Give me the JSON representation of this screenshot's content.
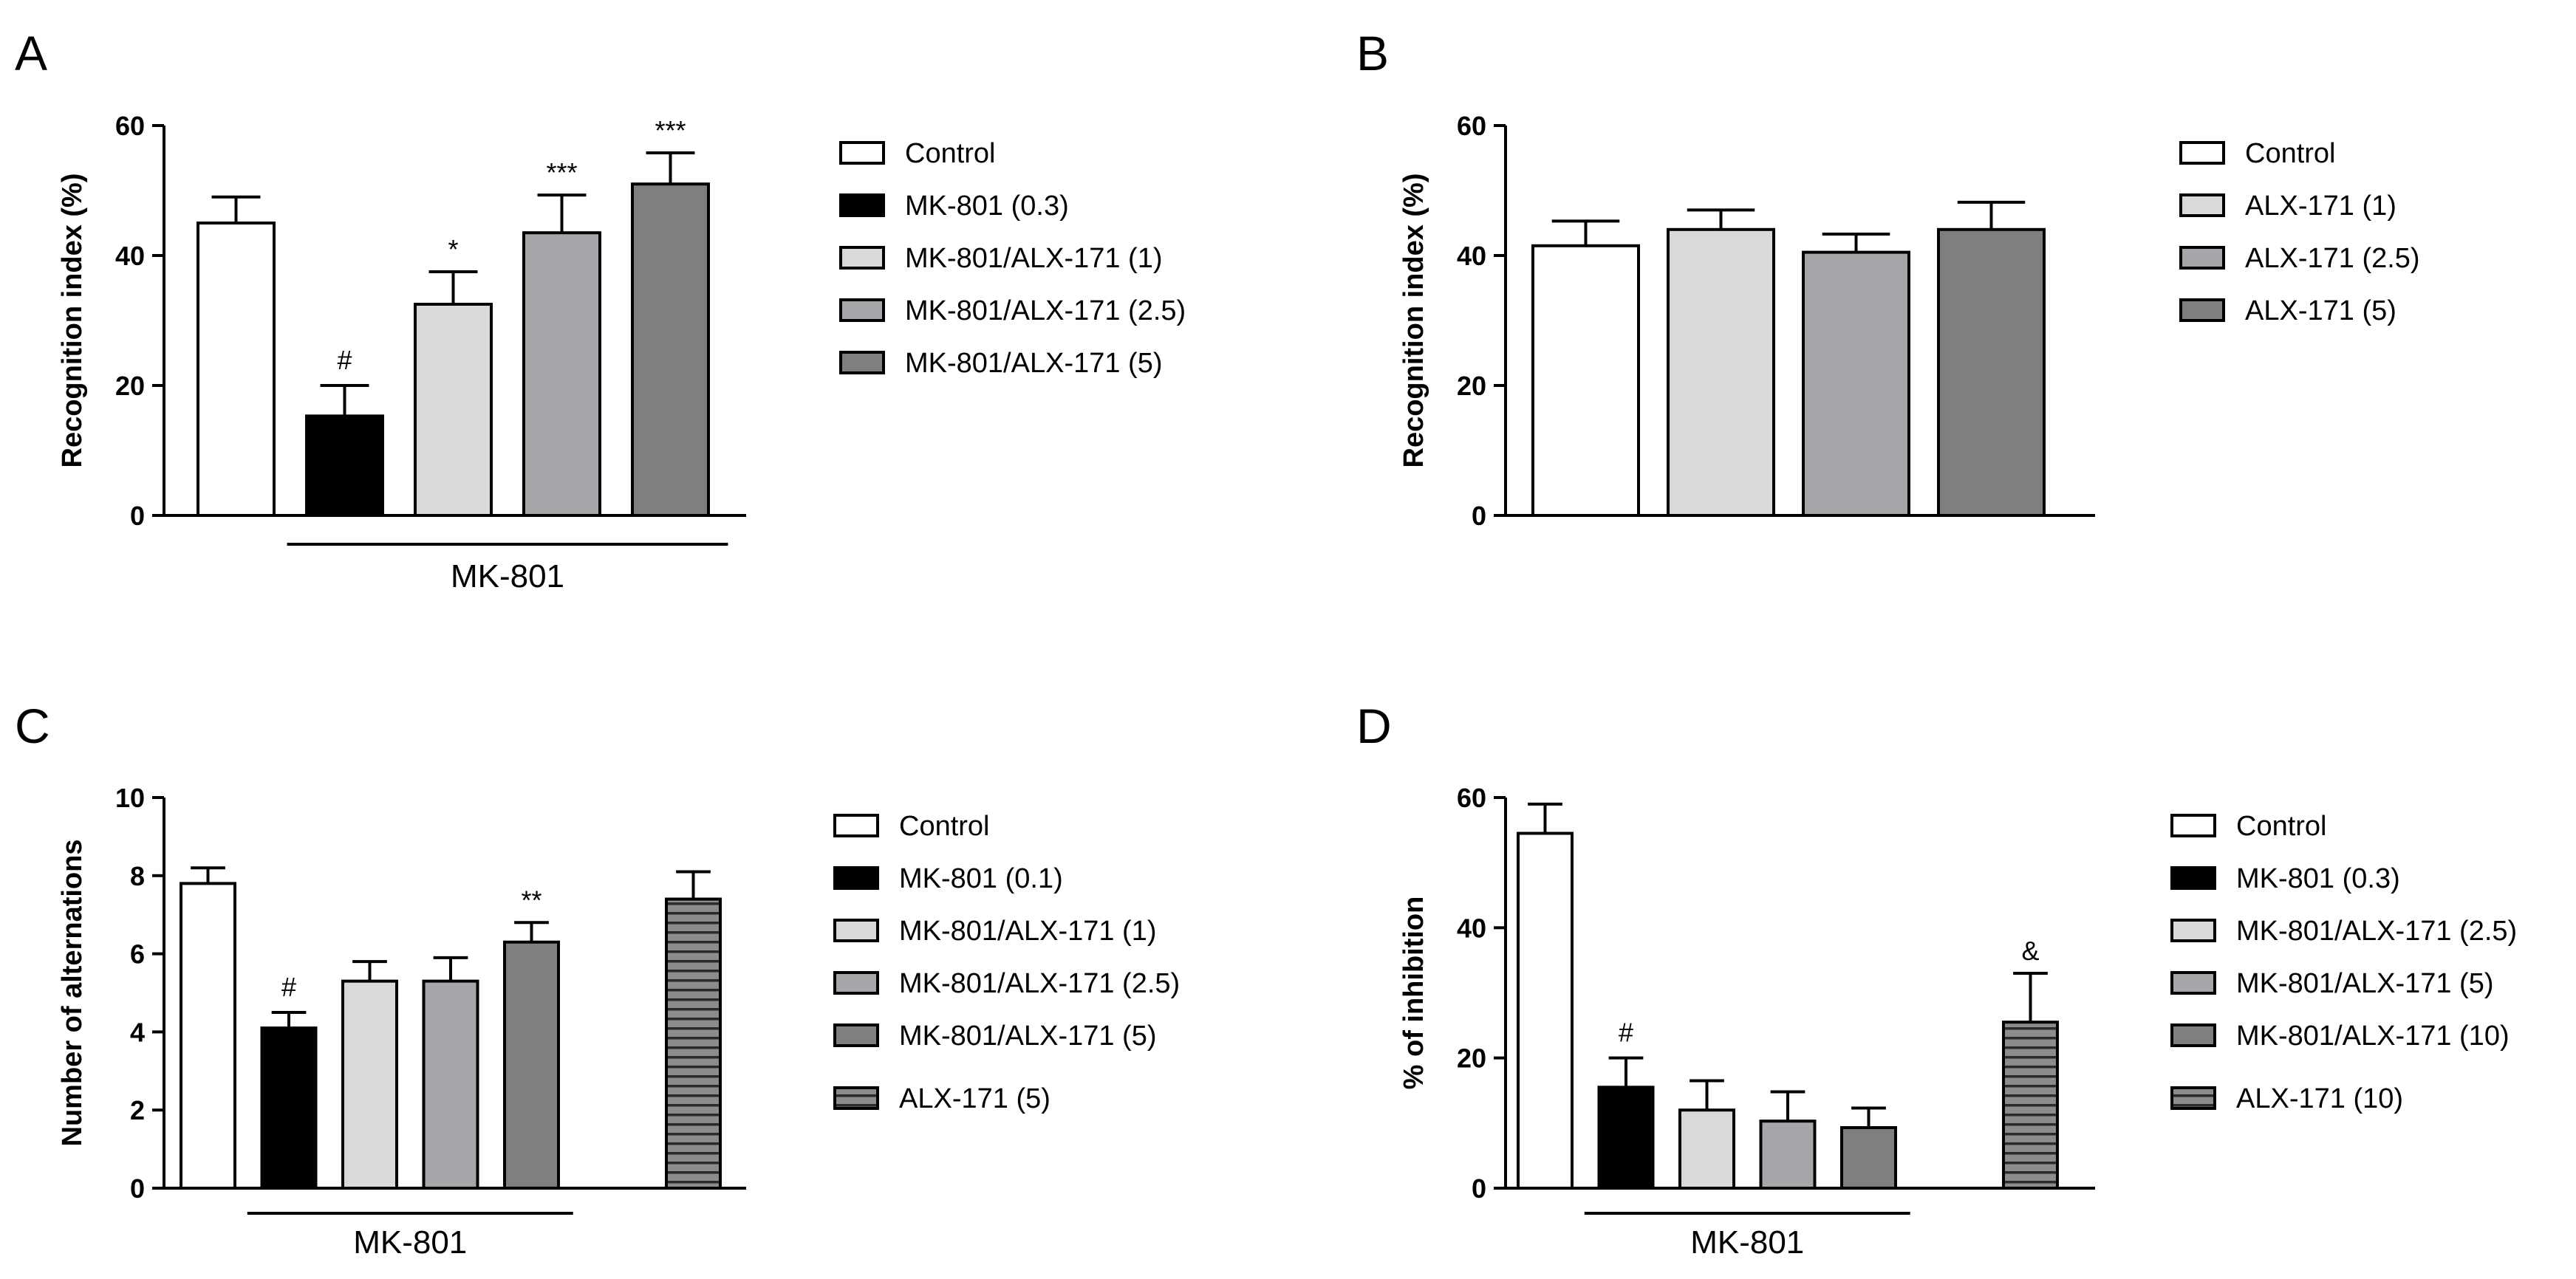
{
  "chart_data": [
    {
      "panel": "A",
      "type": "bar",
      "ylabel": "Recognition index (%)",
      "ylim": [
        0,
        60
      ],
      "yticks": [
        "0",
        "20",
        "40",
        "60"
      ],
      "group_label": "MK-801",
      "group_start": 1,
      "group_end": 4,
      "fills": [
        "#ffffff",
        "#000000",
        "#d9d9d9",
        "#a5a5aa",
        "#7f7f7f"
      ],
      "bars": [
        {
          "name": "Control",
          "value": 45,
          "error": 4,
          "annotation": ""
        },
        {
          "name": "MK-801 (0.3)",
          "value": 15.3,
          "error": 4.7,
          "annotation": "#"
        },
        {
          "name": "MK-801/ALX-171 (1)",
          "value": 32.5,
          "error": 5,
          "annotation": "*"
        },
        {
          "name": "MK-801/ALX-171 (2.5)",
          "value": 43.5,
          "error": 5.8,
          "annotation": "***"
        },
        {
          "name": "MK-801/ALX-171 (5)",
          "value": 51,
          "error": 4.8,
          "annotation": "***"
        }
      ],
      "legend": [
        "Control",
        "MK-801 (0.3)",
        "MK-801/ALX-171 (1)",
        "MK-801/ALX-171 (2.5)",
        "MK-801/ALX-171 (5)"
      ]
    },
    {
      "panel": "B",
      "type": "bar",
      "ylabel": "Recognition index (%)",
      "ylim": [
        0,
        60
      ],
      "yticks": [
        "0",
        "20",
        "40",
        "60"
      ],
      "group_label": "",
      "fills": [
        "#ffffff",
        "#d9d9d9",
        "#a5a5aa",
        "#7f7f7f"
      ],
      "bars": [
        {
          "name": "Control",
          "value": 41.5,
          "error": 3.8,
          "annotation": ""
        },
        {
          "name": "ALX-171 (1)",
          "value": 44,
          "error": 3,
          "annotation": ""
        },
        {
          "name": "ALX-171 (2.5)",
          "value": 40.5,
          "error": 2.8,
          "annotation": ""
        },
        {
          "name": "ALX-171 (5)",
          "value": 44,
          "error": 4.2,
          "annotation": ""
        }
      ],
      "legend": [
        "Control",
        "ALX-171 (1)",
        "ALX-171 (2.5)",
        "ALX-171 (5)"
      ]
    },
    {
      "panel": "C",
      "type": "bar",
      "ylabel": "Number of alternations",
      "ylim": [
        0,
        10
      ],
      "yticks": [
        "0",
        "2",
        "4",
        "6",
        "8",
        "10"
      ],
      "group_label": "MK-801",
      "group_start": 1,
      "group_end": 4,
      "fills": [
        "#ffffff",
        "#000000",
        "#d9d9d9",
        "#a5a5aa",
        "#7f7f7f",
        "#8c8c8c"
      ],
      "hatched": [
        5
      ],
      "bars": [
        {
          "name": "Control",
          "value": 7.8,
          "error": 0.4,
          "annotation": ""
        },
        {
          "name": "MK-801 (0.1)",
          "value": 4.1,
          "error": 0.4,
          "annotation": "#"
        },
        {
          "name": "MK-801/ALX-171 (1)",
          "value": 5.3,
          "error": 0.5,
          "annotation": ""
        },
        {
          "name": "MK-801/ALX-171 (2.5)",
          "value": 5.3,
          "error": 0.6,
          "annotation": ""
        },
        {
          "name": "MK-801/ALX-171 (5)",
          "value": 6.3,
          "error": 0.5,
          "annotation": "**"
        },
        {
          "name": "ALX-171 (5)",
          "value": 7.4,
          "error": 0.7,
          "annotation": ""
        }
      ],
      "legend": [
        "Control",
        "MK-801 (0.1)",
        "MK-801/ALX-171 (1)",
        "MK-801/ALX-171 (2.5)",
        "MK-801/ALX-171 (5)",
        "ALX-171 (5)"
      ]
    },
    {
      "panel": "D",
      "type": "bar",
      "ylabel": "% of inhibition",
      "ylim": [
        0,
        60
      ],
      "yticks": [
        "0",
        "20",
        "40",
        "60"
      ],
      "group_label": "MK-801",
      "group_start": 1,
      "group_end": 4,
      "fills": [
        "#ffffff",
        "#000000",
        "#d9d9d9",
        "#a5a5aa",
        "#7f7f7f",
        "#8c8c8c"
      ],
      "hatched": [
        5
      ],
      "bars": [
        {
          "name": "Control",
          "value": 54.5,
          "error": 4.5,
          "annotation": ""
        },
        {
          "name": "MK-801 (0.3)",
          "value": 15.5,
          "error": 4.5,
          "annotation": "#"
        },
        {
          "name": "MK-801/ALX-171 (2.5)",
          "value": 12,
          "error": 4.5,
          "annotation": ""
        },
        {
          "name": "MK-801/ALX-171 (5)",
          "value": 10.3,
          "error": 4.5,
          "annotation": ""
        },
        {
          "name": "MK-801/ALX-171 (10)",
          "value": 9.3,
          "error": 3,
          "annotation": ""
        },
        {
          "name": "ALX-171 (10)",
          "value": 25.5,
          "error": 7.5,
          "annotation": "&"
        }
      ],
      "legend": [
        "Control",
        "MK-801 (0.3)",
        "MK-801/ALX-171 (2.5)",
        "MK-801/ALX-171 (5)",
        "MK-801/ALX-171 (10)",
        "ALX-171 (10)"
      ]
    }
  ]
}
